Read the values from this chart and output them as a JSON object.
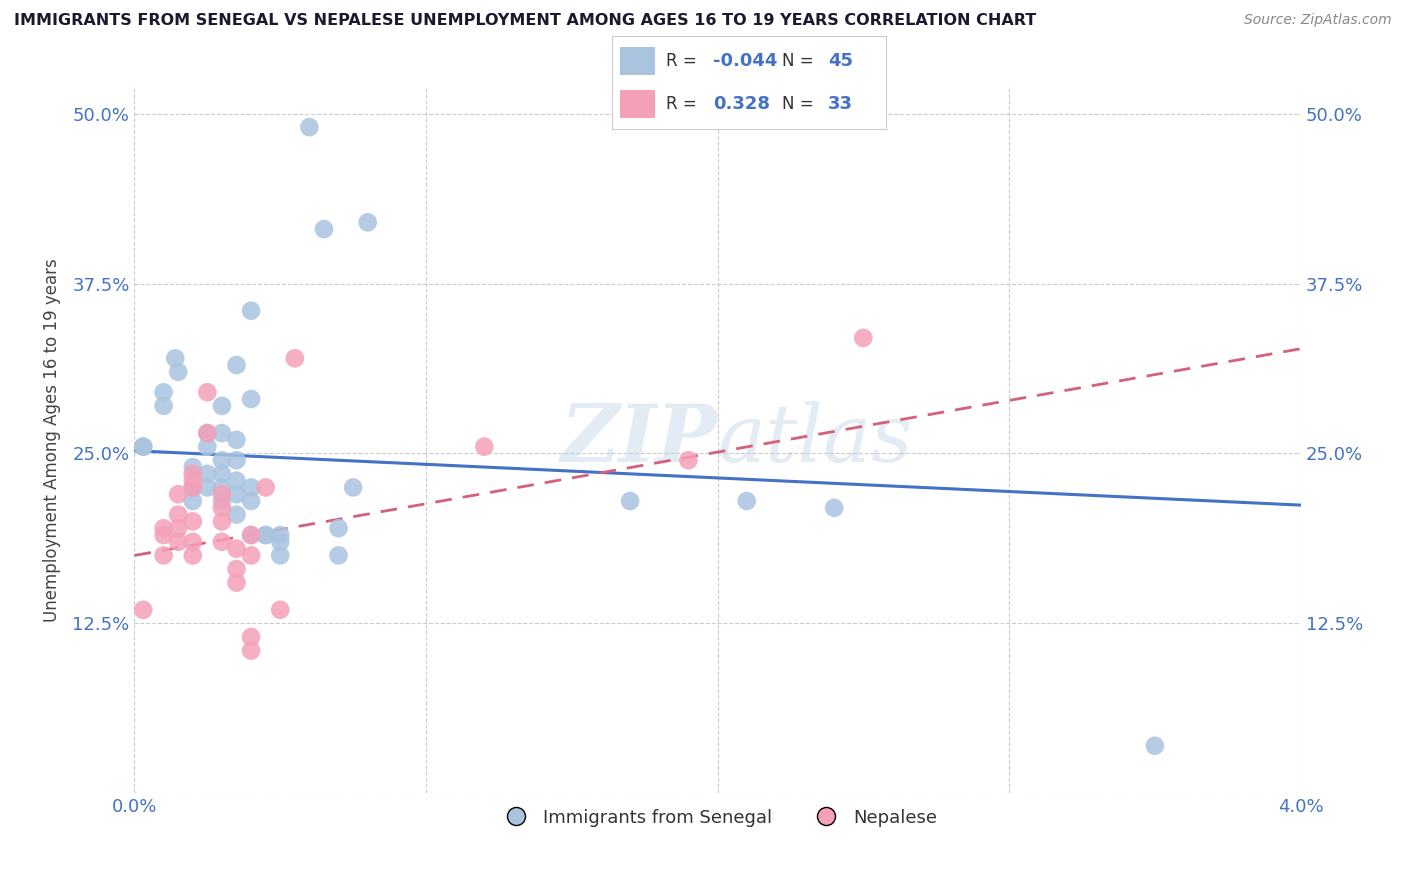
{
  "title": "IMMIGRANTS FROM SENEGAL VS NEPALESE UNEMPLOYMENT AMONG AGES 16 TO 19 YEARS CORRELATION CHART",
  "source": "Source: ZipAtlas.com",
  "ylabel": "Unemployment Among Ages 16 to 19 years",
  "xlim": [
    0.0,
    0.04
  ],
  "ylim": [
    0.0,
    0.52
  ],
  "xticks": [
    0.0,
    0.01,
    0.02,
    0.03,
    0.04
  ],
  "xticklabels": [
    "0.0%",
    "",
    "",
    "",
    "4.0%"
  ],
  "yticks": [
    0.0,
    0.125,
    0.25,
    0.375,
    0.5
  ],
  "yticklabels": [
    "",
    "12.5%",
    "25.0%",
    "37.5%",
    "50.0%"
  ],
  "axis_color": "#4472c4",
  "watermark": "ZIPatlas",
  "blue_color": "#aac4e0",
  "pink_color": "#f4a0b8",
  "line_blue": "#4472c4",
  "line_pink": "#d4607a",
  "blue_intercept": 0.252,
  "blue_slope": -1.0,
  "pink_intercept": 0.175,
  "pink_slope": 3.8,
  "blue_scatter": [
    [
      0.0003,
      0.255
    ],
    [
      0.0003,
      0.255
    ],
    [
      0.001,
      0.295
    ],
    [
      0.001,
      0.285
    ],
    [
      0.0014,
      0.32
    ],
    [
      0.0015,
      0.31
    ],
    [
      0.002,
      0.215
    ],
    [
      0.002,
      0.24
    ],
    [
      0.002,
      0.225
    ],
    [
      0.0025,
      0.265
    ],
    [
      0.0025,
      0.255
    ],
    [
      0.0025,
      0.235
    ],
    [
      0.0025,
      0.225
    ],
    [
      0.003,
      0.285
    ],
    [
      0.003,
      0.265
    ],
    [
      0.003,
      0.245
    ],
    [
      0.003,
      0.235
    ],
    [
      0.003,
      0.225
    ],
    [
      0.003,
      0.215
    ],
    [
      0.0035,
      0.315
    ],
    [
      0.0035,
      0.26
    ],
    [
      0.0035,
      0.245
    ],
    [
      0.0035,
      0.23
    ],
    [
      0.0035,
      0.22
    ],
    [
      0.0035,
      0.205
    ],
    [
      0.004,
      0.355
    ],
    [
      0.004,
      0.29
    ],
    [
      0.004,
      0.225
    ],
    [
      0.004,
      0.215
    ],
    [
      0.004,
      0.19
    ],
    [
      0.0045,
      0.19
    ],
    [
      0.0045,
      0.19
    ],
    [
      0.005,
      0.19
    ],
    [
      0.005,
      0.185
    ],
    [
      0.005,
      0.175
    ],
    [
      0.006,
      0.49
    ],
    [
      0.0065,
      0.415
    ],
    [
      0.007,
      0.195
    ],
    [
      0.007,
      0.175
    ],
    [
      0.0075,
      0.225
    ],
    [
      0.008,
      0.42
    ],
    [
      0.017,
      0.215
    ],
    [
      0.021,
      0.215
    ],
    [
      0.024,
      0.21
    ],
    [
      0.035,
      0.035
    ]
  ],
  "pink_scatter": [
    [
      0.0003,
      0.135
    ],
    [
      0.001,
      0.195
    ],
    [
      0.001,
      0.19
    ],
    [
      0.001,
      0.175
    ],
    [
      0.0015,
      0.22
    ],
    [
      0.0015,
      0.205
    ],
    [
      0.0015,
      0.195
    ],
    [
      0.0015,
      0.185
    ],
    [
      0.002,
      0.235
    ],
    [
      0.002,
      0.23
    ],
    [
      0.002,
      0.225
    ],
    [
      0.002,
      0.2
    ],
    [
      0.002,
      0.185
    ],
    [
      0.002,
      0.175
    ],
    [
      0.0025,
      0.295
    ],
    [
      0.0025,
      0.265
    ],
    [
      0.003,
      0.22
    ],
    [
      0.003,
      0.21
    ],
    [
      0.003,
      0.2
    ],
    [
      0.003,
      0.185
    ],
    [
      0.0035,
      0.18
    ],
    [
      0.0035,
      0.165
    ],
    [
      0.0035,
      0.155
    ],
    [
      0.004,
      0.19
    ],
    [
      0.004,
      0.175
    ],
    [
      0.004,
      0.115
    ],
    [
      0.004,
      0.105
    ],
    [
      0.0045,
      0.225
    ],
    [
      0.005,
      0.135
    ],
    [
      0.0055,
      0.32
    ],
    [
      0.012,
      0.255
    ],
    [
      0.019,
      0.245
    ],
    [
      0.025,
      0.335
    ]
  ],
  "legend_blue_r": "-0.044",
  "legend_blue_n": "45",
  "legend_pink_r": "0.328",
  "legend_pink_n": "33"
}
